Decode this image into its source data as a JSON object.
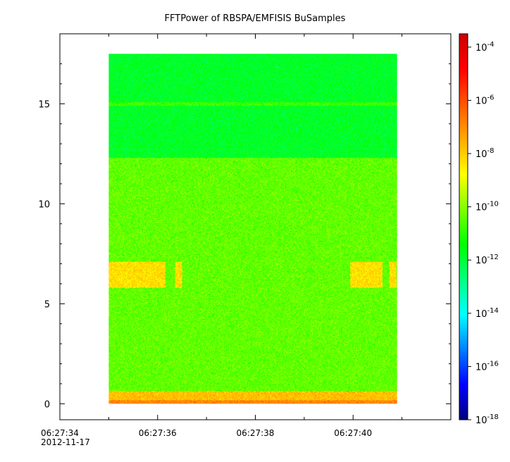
{
  "chart_data": {
    "type": "heatmap",
    "title": "FFTPower of RBSPA/EMFISIS  BuSamples",
    "xlabel": "",
    "ylabel": "",
    "x_range_seconds": [
      "06:27:34",
      "06:27:42"
    ],
    "x_data_extent": [
      "06:27:35.0",
      "06:27:40.9"
    ],
    "x_ticks": [
      "06:27:34",
      "06:27:36",
      "06:27:38",
      "06:27:40"
    ],
    "x_date_label": "2012-11-17",
    "ylim": [
      -0.8,
      18.5
    ],
    "y_data_extent": [
      0,
      17.5
    ],
    "y_ticks": [
      "0",
      "5",
      "10",
      "15"
    ],
    "colorbar": {
      "scale": "log",
      "range": [
        "1e-18",
        "1e-3.5"
      ],
      "ticks": [
        {
          "base": "10",
          "exp": "-4"
        },
        {
          "base": "10",
          "exp": "-6"
        },
        {
          "base": "10",
          "exp": "-8"
        },
        {
          "base": "10",
          "exp": "-10"
        },
        {
          "base": "10",
          "exp": "-12"
        },
        {
          "base": "10",
          "exp": "-14"
        },
        {
          "base": "10",
          "exp": "-16"
        },
        {
          "base": "10",
          "exp": "-18"
        }
      ],
      "colormap": [
        "#00007f",
        "#0000ff",
        "#007fff",
        "#00ffff",
        "#00ff7f",
        "#00ff00",
        "#7fff00",
        "#ffff00",
        "#ffaa00",
        "#ff5500",
        "#ff0000",
        "#cc0000"
      ]
    },
    "spectrogram_features": {
      "background_low_freq_log10": -10.4,
      "background_high_freq_log10": -11.8,
      "high_freq_band_start": 12.3,
      "narrow_line_freq": 15.0,
      "narrow_line_log10": -10.8,
      "bottom_band_log10": -7.8,
      "bottom_band_top": 0.6,
      "emission_band_log10": -8.3,
      "emission_band_freq": [
        5.8,
        7.1
      ],
      "emission_patches_time_s": [
        [
          35.0,
          36.15
        ],
        [
          36.35,
          36.5
        ],
        [
          39.95,
          40.6
        ],
        [
          40.75,
          40.9
        ]
      ]
    }
  }
}
